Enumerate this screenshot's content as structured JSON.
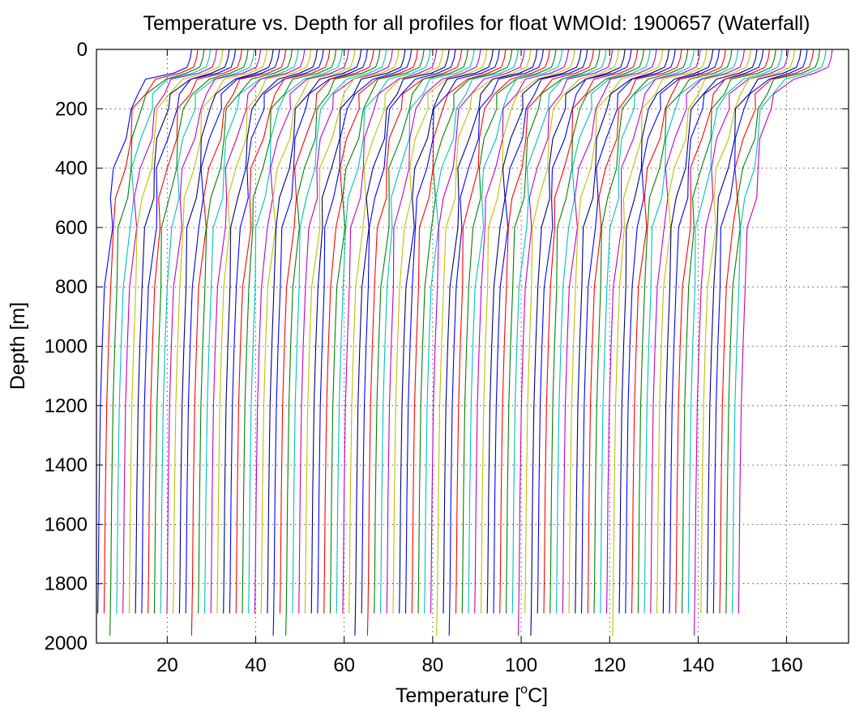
{
  "chart_data": {
    "type": "line",
    "title": "Temperature vs. Depth for all profiles for float WMOId: 1900657 (Waterfall)",
    "xlabel_prefix": "Temperature [",
    "xlabel_sup": "o",
    "xlabel_suffix": "C]",
    "ylabel": "Depth [m]",
    "xlim": [
      4,
      174
    ],
    "ylim": [
      0,
      2000
    ],
    "y_reversed": true,
    "grid": true,
    "x_ticks": [
      20,
      40,
      60,
      80,
      100,
      120,
      140,
      160
    ],
    "y_ticks": [
      0,
      200,
      400,
      600,
      800,
      1000,
      1200,
      1400,
      1600,
      1800,
      2000
    ],
    "x_tick_labels": [
      "20",
      "40",
      "60",
      "80",
      "100",
      "120",
      "140",
      "160"
    ],
    "y_tick_labels": [
      "0",
      "200",
      "400",
      "600",
      "800",
      "1000",
      "1200",
      "1400",
      "1600",
      "1800",
      "2000"
    ],
    "series_colors": [
      "#0000ff",
      "#ff0000",
      "#008000",
      "#00bfbf",
      "#bf00bf",
      "#bfbf00",
      "#000080"
    ],
    "profiles": {
      "count": 103,
      "offset_step": 1.42,
      "first_deep_temperature": 4.2,
      "last_deep_temperature": 149.8,
      "depth_levels": [
        0,
        30,
        60,
        80,
        100,
        150,
        200,
        300,
        400,
        500,
        600,
        800,
        1000,
        1200,
        1500,
        1800,
        1900,
        1975
      ],
      "base_profile_temperature": [
        24.5,
        24.2,
        23.5,
        20.5,
        15.0,
        12.0,
        10.5,
        9.0,
        7.5,
        6.6,
        5.8,
        4.8,
        4.3,
        3.9,
        3.6,
        3.4,
        3.3,
        3.2
      ]
    }
  }
}
